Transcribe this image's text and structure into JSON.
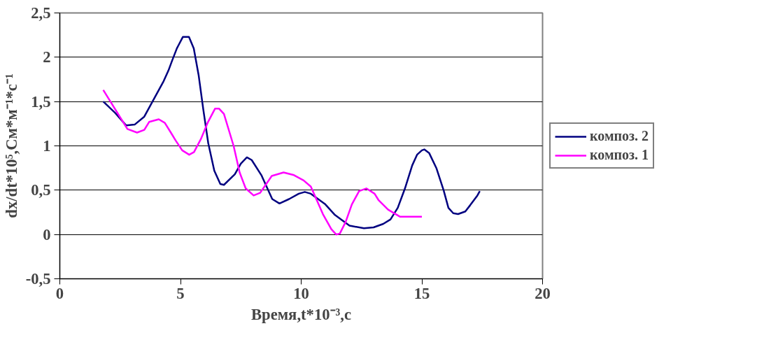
{
  "chart_data": {
    "type": "line",
    "xlabel": "Время,t*10⁻³,с",
    "ylabel": "dx/dt*10⁵,См*м⁻¹*с⁻¹",
    "xlim": [
      0,
      20
    ],
    "xticks": [
      0,
      5,
      10,
      15,
      20
    ],
    "ylim": [
      -0.5,
      2.5
    ],
    "yticks": [
      {
        "value": -0.5,
        "label": "-0,5"
      },
      0,
      {
        "value": 0.5,
        "label": "0,5"
      },
      1,
      {
        "value": 1.5,
        "label": "1,5"
      },
      2,
      {
        "value": 2.5,
        "label": "2,5"
      }
    ],
    "grid": "y",
    "legend": "right",
    "marker": "none",
    "line_style": "solid",
    "series": [
      {
        "name": "композ. 2",
        "color": "#000080",
        "x": [
          1.8,
          2.3,
          2.75,
          3.1,
          3.5,
          3.9,
          4.3,
          4.5,
          4.65,
          4.85,
          5.1,
          5.35,
          5.55,
          5.75,
          5.95,
          6.15,
          6.4,
          6.65,
          6.8,
          7.25,
          7.5,
          7.75,
          7.95,
          8.35,
          8.8,
          9.1,
          9.5,
          9.9,
          10.15,
          10.4,
          11.0,
          11.4,
          12.0,
          12.6,
          13.0,
          13.4,
          13.7,
          14.0,
          14.3,
          14.6,
          14.8,
          15.0,
          15.1,
          15.3,
          15.6,
          15.9,
          16.1,
          16.3,
          16.5,
          16.8,
          17.0,
          17.3,
          17.4
        ],
        "values": [
          1.5,
          1.37,
          1.23,
          1.24,
          1.33,
          1.53,
          1.73,
          1.85,
          1.96,
          2.1,
          2.23,
          2.23,
          2.1,
          1.8,
          1.4,
          1.03,
          0.72,
          0.57,
          0.56,
          0.68,
          0.8,
          0.87,
          0.84,
          0.67,
          0.4,
          0.35,
          0.4,
          0.46,
          0.48,
          0.46,
          0.34,
          0.22,
          0.1,
          0.07,
          0.08,
          0.12,
          0.17,
          0.3,
          0.52,
          0.78,
          0.9,
          0.95,
          0.96,
          0.92,
          0.75,
          0.5,
          0.3,
          0.24,
          0.23,
          0.26,
          0.33,
          0.44,
          0.49
        ]
      },
      {
        "name": "композ. 1",
        "color": "#ff00ff",
        "x": [
          1.8,
          2.8,
          3.2,
          3.5,
          3.7,
          4.1,
          4.35,
          4.6,
          4.8,
          5.07,
          5.36,
          5.56,
          5.85,
          6.14,
          6.43,
          6.6,
          6.8,
          7.2,
          7.45,
          7.7,
          8.03,
          8.3,
          8.78,
          9.27,
          9.7,
          10.1,
          10.4,
          10.9,
          11.25,
          11.45,
          11.6,
          11.84,
          12.1,
          12.4,
          12.7,
          13.04,
          13.2,
          13.6,
          14.1,
          15.0
        ],
        "values": [
          1.63,
          1.19,
          1.15,
          1.18,
          1.27,
          1.3,
          1.26,
          1.15,
          1.06,
          0.95,
          0.9,
          0.93,
          1.08,
          1.27,
          1.42,
          1.42,
          1.36,
          1.0,
          0.7,
          0.52,
          0.44,
          0.47,
          0.66,
          0.7,
          0.67,
          0.61,
          0.54,
          0.23,
          0.06,
          0.0,
          0.01,
          0.14,
          0.34,
          0.49,
          0.52,
          0.46,
          0.39,
          0.28,
          0.2,
          0.2
        ]
      }
    ]
  }
}
